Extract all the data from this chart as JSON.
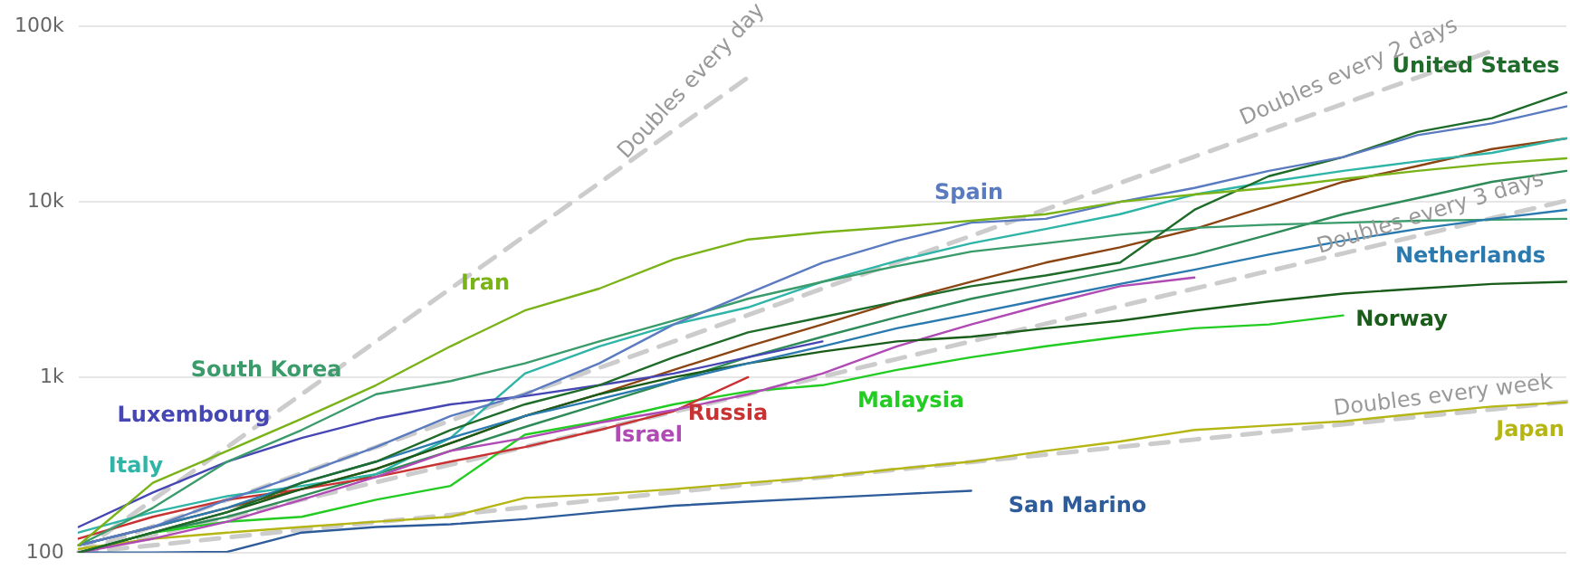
{
  "chart_data": {
    "type": "line",
    "categories": [
      null,
      null,
      null,
      null,
      null,
      null,
      null,
      null,
      null,
      null,
      null,
      null,
      null,
      null,
      null,
      null,
      null,
      null,
      null,
      null,
      null
    ],
    "log": "y",
    "grid": "y",
    "tick_labels": "y",
    "ylim": [
      100,
      100000
    ],
    "yticks": [
      {
        "value": 100,
        "label": "100"
      },
      {
        "value": 1000,
        "label": "1k"
      },
      {
        "value": 10000,
        "label": "10k"
      },
      {
        "value": 100000,
        "label": "100k"
      }
    ],
    "series": [
      {
        "name": "Iran",
        "color": "#7ab317",
        "values": [
          110,
          250,
          380,
          580,
          900,
          1500,
          2400,
          3200,
          4700,
          6100,
          6700,
          7200,
          7800,
          8500,
          10000,
          11000,
          12000,
          13500,
          15000,
          16500,
          17700
        ]
      },
      {
        "name": "Spain",
        "color": "#5b7bc0",
        "values": [
          110,
          140,
          200,
          280,
          400,
          600,
          800,
          1200,
          2000,
          3000,
          4500,
          6000,
          7600,
          8000,
          10000,
          12000,
          15000,
          18000,
          24000,
          28000,
          35000
        ]
      },
      {
        "name": "United States",
        "color": "#1f6b2a",
        "values": [
          100,
          130,
          170,
          250,
          330,
          500,
          700,
          900,
          1300,
          1800,
          2200,
          2700,
          3300,
          3800,
          4500,
          9000,
          14000,
          18000,
          25000,
          30000,
          42000
        ]
      },
      {
        "name": "Netherlands",
        "color": "#2a7ab0",
        "values": [
          110,
          140,
          180,
          250,
          330,
          450,
          600,
          750,
          950,
          1200,
          1500,
          1900,
          2300,
          2800,
          3400,
          4100,
          5000,
          6000,
          7000,
          8000,
          9000
        ]
      },
      {
        "name": "Norway",
        "color": "#1a5c1a",
        "values": [
          100,
          130,
          170,
          230,
          300,
          420,
          600,
          800,
          1000,
          1200,
          1400,
          1600,
          1700,
          1900,
          2100,
          2400,
          2700,
          3000,
          3200,
          3400,
          3500
        ]
      },
      {
        "name": "South Korea",
        "color": "#3a9b6b",
        "values": [
          110,
          180,
          330,
          500,
          800,
          950,
          1200,
          1600,
          2100,
          2800,
          3500,
          4300,
          5200,
          5800,
          6500,
          7100,
          7400,
          7600,
          7800,
          7900,
          8000
        ]
      },
      {
        "name": "Luxembourg",
        "color": "#4646b4",
        "values": [
          140,
          220,
          330,
          450,
          580,
          700,
          780,
          900,
          1050,
          1300,
          1600,
          null,
          null,
          null,
          null,
          null,
          null,
          null,
          null,
          null,
          null
        ]
      },
      {
        "name": "Italy",
        "color": "#2fb5a8",
        "values": [
          130,
          170,
          210,
          240,
          280,
          450,
          1050,
          1500,
          2000,
          2500,
          3500,
          4600,
          5800,
          7000,
          8500,
          11000,
          13000,
          15000,
          17000,
          19000,
          23000
        ]
      },
      {
        "name": "Israel",
        "color": "#b04ab4",
        "values": [
          100,
          120,
          150,
          200,
          270,
          380,
          450,
          550,
          650,
          800,
          1050,
          1500,
          2000,
          2600,
          3300,
          3700,
          null,
          null,
          null,
          null,
          null
        ]
      },
      {
        "name": "Russia",
        "color": "#c83232",
        "values": [
          120,
          160,
          200,
          230,
          270,
          330,
          400,
          500,
          640,
          1000,
          null,
          null,
          null,
          null,
          null,
          null,
          null,
          null,
          null,
          null,
          null
        ]
      },
      {
        "name": "Malaysia",
        "color": "#22cc22",
        "values": [
          100,
          130,
          150,
          160,
          200,
          240,
          470,
          560,
          700,
          830,
          900,
          1100,
          1300,
          1500,
          1700,
          1900,
          2000,
          2250,
          null,
          null,
          null
        ]
      },
      {
        "name": "Japan",
        "color": "#b5b514",
        "values": [
          105,
          120,
          130,
          140,
          150,
          160,
          205,
          215,
          230,
          250,
          270,
          300,
          330,
          380,
          430,
          500,
          530,
          560,
          620,
          680,
          720
        ]
      },
      {
        "name": "San Marino",
        "color": "#2e5c9a",
        "values": [
          100,
          100,
          101,
          130,
          140,
          145,
          155,
          170,
          185,
          195,
          205,
          215,
          225,
          null,
          null,
          null,
          null,
          null,
          null,
          null,
          null
        ]
      },
      {
        "color": "#8b4513",
        "values": [
          110,
          140,
          180,
          230,
          300,
          420,
          600,
          800,
          1100,
          1500,
          2000,
          2700,
          3500,
          4500,
          5500,
          7000,
          9500,
          13000,
          16000,
          20000,
          23000
        ]
      },
      {
        "color": "#2e8b57",
        "values": [
          100,
          130,
          160,
          210,
          280,
          380,
          520,
          700,
          950,
          1300,
          1700,
          2200,
          2800,
          3400,
          4100,
          5000,
          6500,
          8500,
          10500,
          13000,
          15000
        ]
      },
      {
        "name": "Doubles every day",
        "color": "#cccccc",
        "line_style": "dashed",
        "values": [
          100,
          200,
          400,
          800,
          1600,
          3200,
          6400,
          12800,
          25600,
          51200,
          null,
          null,
          null,
          null,
          null,
          null,
          null,
          null,
          null,
          null,
          null
        ]
      },
      {
        "name": "Doubles every 2 days",
        "color": "#cccccc",
        "line_style": "dashed",
        "values": [
          100,
          141,
          200,
          283,
          400,
          566,
          800,
          1131,
          1600,
          2263,
          3200,
          4525,
          6400,
          9051,
          12800,
          18102,
          25600,
          36204,
          51200,
          72408,
          null
        ]
      },
      {
        "name": "Doubles every 3 days",
        "color": "#cccccc",
        "line_style": "dashed",
        "values": [
          100,
          126,
          159,
          200,
          252,
          317,
          400,
          504,
          635,
          800,
          1008,
          1270,
          1600,
          2016,
          2540,
          3200,
          4032,
          5080,
          6400,
          8063,
          10159
        ]
      },
      {
        "name": "Doubles every week",
        "color": "#cccccc",
        "line_style": "dashed",
        "values": [
          100,
          110,
          122,
          135,
          149,
          164,
          181,
          200,
          221,
          244,
          269,
          297,
          328,
          362,
          400,
          441,
          487,
          538,
          594,
          655,
          724
        ]
      }
    ]
  }
}
